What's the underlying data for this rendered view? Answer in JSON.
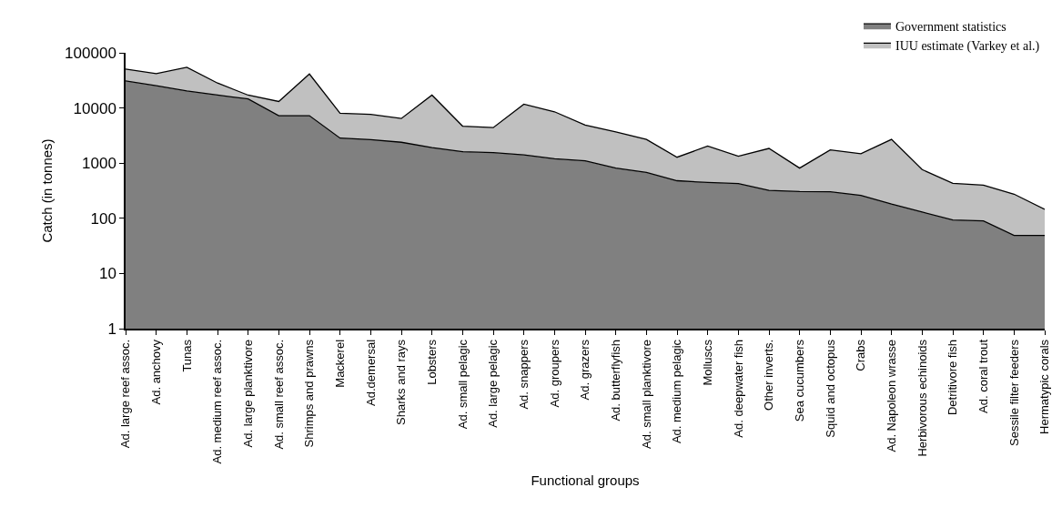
{
  "chart_data": {
    "type": "area",
    "stacked": true,
    "xlabel": "Functional groups",
    "ylabel": "Catch (in tonnes)",
    "categories": [
      "Ad. large reef assoc.",
      "Ad. anchovy",
      "Tunas",
      "Ad. medium reef assoc.",
      "Ad. large planktivore",
      "Ad. small reef assoc.",
      "Shrimps and prawns",
      "Mackerel",
      "Ad.demersal",
      "Sharks and rays",
      "Lobsters",
      "Ad. small pelagic",
      "Ad. large pelagic",
      "Ad. snappers",
      "Ad. groupers",
      "Ad. grazers",
      "Ad. butterflyfish",
      "Ad. small planktivore",
      "Ad. medium pelagic",
      "Molluscs",
      "Ad. deepwater fish",
      "Other inverts.",
      "Sea cucumbers",
      "Squid and octopus",
      "Crabs",
      "Ad. Napoleon wrasse",
      "Herbivorous echinoids",
      "Detritivore fish",
      "Ad. coral trout",
      "Sessile filter feeders",
      "Hermatypic corals"
    ],
    "series": [
      {
        "name": "Government statistics",
        "color": "#808080",
        "values": [
          30900,
          25300,
          20300,
          17100,
          14600,
          7260,
          7260,
          2840,
          2670,
          2390,
          1920,
          1610,
          1550,
          1410,
          1200,
          1100,
          813,
          678,
          480,
          446,
          425,
          321,
          305,
          302,
          261,
          181,
          130,
          93,
          90,
          49,
          49
        ]
      },
      {
        "name": "IUU estimate (Varkey et al.)",
        "color": "#c0c0c0",
        "values": [
          20000,
          16600,
          34400,
          11200,
          2500,
          5840,
          34100,
          5180,
          4980,
          4050,
          15200,
          3070,
          2860,
          10300,
          7340,
          3820,
          2860,
          2020,
          800,
          1590,
          905,
          1530,
          508,
          1440,
          1220,
          2520,
          635,
          337,
          309,
          225,
          96
        ]
      }
    ],
    "log": "y",
    "ylim": [
      1,
      100000
    ],
    "yticks": [
      1,
      10,
      100,
      1000,
      10000,
      100000
    ],
    "grid": false,
    "legend": "top right"
  }
}
